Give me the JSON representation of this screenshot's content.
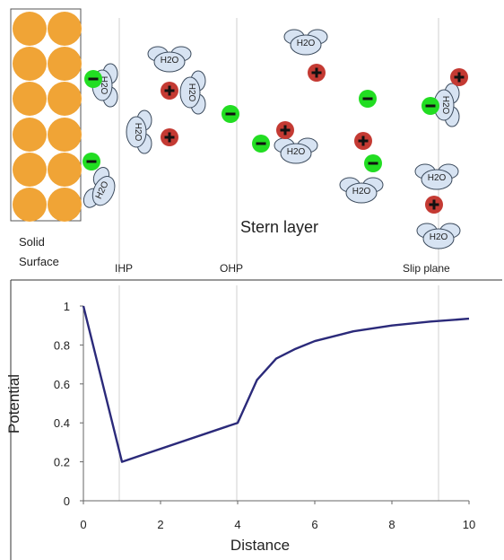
{
  "diagram": {
    "solid_label_line1": "Solid",
    "solid_label_line2": "Surface",
    "stern_label": "Stern layer",
    "ihp_label": "IHP",
    "ohp_label": "OHP",
    "slip_label": "Slip plane",
    "water_text": "H2O",
    "colors": {
      "sphere": "#f0a436",
      "water": "#d7e3f2",
      "anion": "#22dd22",
      "cation": "#c43a33",
      "curve": "#2b2a7a"
    }
  },
  "chart_data": {
    "type": "line",
    "xlabel": "Distance",
    "ylabel": "Potential",
    "xlim": [
      0,
      10
    ],
    "ylim": [
      0,
      1
    ],
    "x_ticks": [
      0,
      2,
      4,
      6,
      8,
      10
    ],
    "y_ticks": [
      0,
      0.2,
      0.4,
      0.6,
      0.8,
      1
    ],
    "grid": false,
    "series": [
      {
        "x": [
          0,
          1,
          4,
          4.5,
          5.0,
          5.5,
          6.0,
          7.0,
          8.0,
          9.0,
          10.0
        ],
        "y": [
          1.0,
          0.2,
          0.4,
          0.62,
          0.73,
          0.78,
          0.82,
          0.87,
          0.9,
          0.92,
          0.935
        ]
      }
    ]
  }
}
